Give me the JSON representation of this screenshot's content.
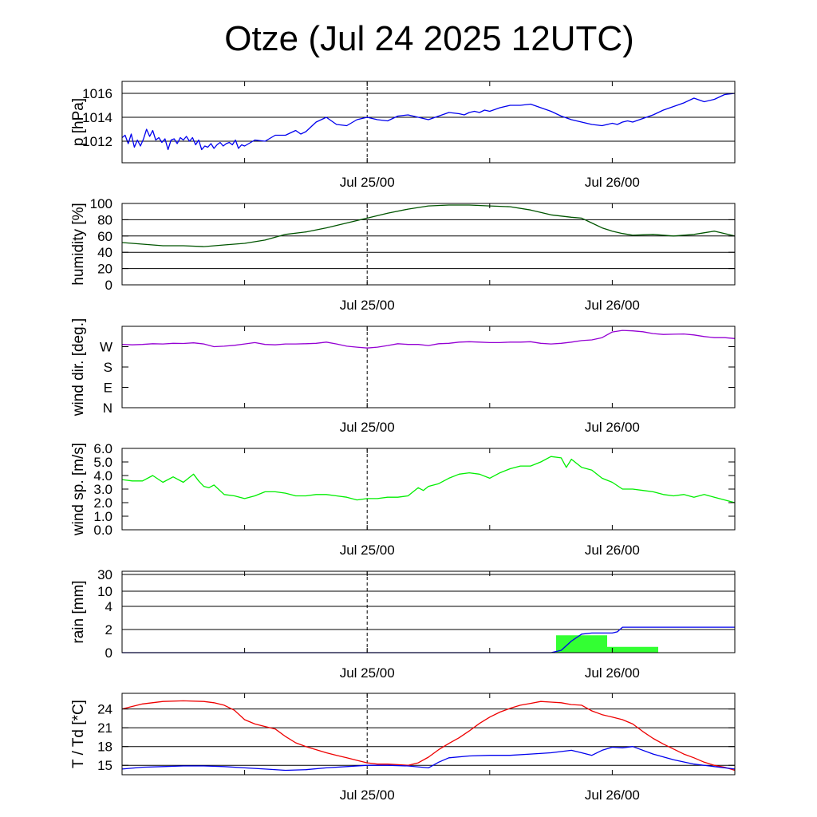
{
  "title": "Otze (Jul 24 2025 12UTC)",
  "x_axis": {
    "range_hours": [
      -24,
      36
    ],
    "tick_labels": [
      {
        "x": 0,
        "label": "Jul 25/00"
      },
      {
        "x": 24,
        "label": "Jul 26/00"
      }
    ],
    "minor_ticks": [
      -12,
      0,
      12,
      24
    ]
  },
  "colors": {
    "pressure": "#0000ee",
    "humidity": "#005500",
    "wind_dir": "#9400d3",
    "wind_speed": "#00ee00",
    "rain_cum": "#0000ee",
    "rain_bar": "#33ff33",
    "temperature": "#ee0000",
    "dewpoint": "#0000ee"
  },
  "chart_data": [
    {
      "type": "line",
      "ylabel": "p [hPa]",
      "ylim": [
        1010.2,
        1017.0
      ],
      "gridlines": [
        1012,
        1014,
        1016
      ],
      "yticks": [
        {
          "v": 1012,
          "label": "1012"
        },
        {
          "v": 1014,
          "label": "1014"
        },
        {
          "v": 1016,
          "label": "1016"
        }
      ],
      "series": [
        {
          "color": "#0000ee",
          "x": [
            0,
            0.3,
            0.6,
            0.9,
            1.2,
            1.5,
            1.8,
            2.1,
            2.4,
            2.7,
            3.0,
            3.3,
            3.6,
            3.9,
            4.2,
            4.5,
            4.8,
            5.1,
            5.4,
            5.7,
            6.0,
            6.3,
            6.6,
            6.9,
            7.2,
            7.5,
            7.8,
            8.1,
            8.4,
            8.7,
            9.0,
            9.3,
            9.6,
            9.9,
            10.2,
            10.5,
            10.8,
            11.1,
            11.4,
            11.7,
            12,
            13,
            14,
            15,
            16,
            17,
            17.5,
            18,
            18.5,
            19,
            20,
            21,
            22,
            23,
            24,
            25,
            26,
            27,
            28,
            29,
            30,
            31,
            32,
            33,
            33.5,
            34,
            34.5,
            35,
            35.5,
            36,
            37,
            38,
            39,
            40,
            41,
            42,
            43,
            44,
            45,
            46,
            47,
            48,
            48.5,
            49,
            49.5,
            50,
            51,
            52,
            53,
            54,
            55,
            56,
            57,
            58,
            59,
            60
          ],
          "y": [
            1012.3,
            1012.5,
            1011.8,
            1012.6,
            1011.5,
            1012.1,
            1011.6,
            1012.2,
            1013.0,
            1012.4,
            1012.9,
            1012.1,
            1012.3,
            1011.9,
            1012.2,
            1011.3,
            1012.1,
            1012.2,
            1011.8,
            1012.3,
            1012.1,
            1012.4,
            1012.0,
            1012.3,
            1011.7,
            1012.1,
            1011.3,
            1011.6,
            1011.5,
            1011.8,
            1011.4,
            1011.7,
            1011.9,
            1011.6,
            1011.8,
            1011.9,
            1011.7,
            1012.1,
            1011.4,
            1011.7,
            1011.6,
            1012.1,
            1012.0,
            1012.5,
            1012.5,
            1012.9,
            1012.6,
            1012.8,
            1013.2,
            1013.6,
            1014.0,
            1013.4,
            1013.3,
            1013.8,
            1014.0,
            1013.8,
            1013.7,
            1014.1,
            1014.2,
            1014.0,
            1013.8,
            1014.1,
            1014.4,
            1014.3,
            1014.2,
            1014.4,
            1014.5,
            1014.4,
            1014.6,
            1014.5,
            1014.8,
            1015.0,
            1015.0,
            1015.1,
            1014.8,
            1014.5,
            1014.1,
            1013.8,
            1013.6,
            1013.4,
            1013.3,
            1013.5,
            1013.4,
            1013.6,
            1013.7,
            1013.6,
            1013.9,
            1014.2,
            1014.6,
            1014.9,
            1015.2,
            1015.6,
            1015.3,
            1015.5,
            1015.9,
            1016.0
          ]
        }
      ]
    },
    {
      "type": "line",
      "ylabel": "humidity [%]",
      "ylim": [
        0,
        100
      ],
      "gridlines": [
        20,
        40,
        60,
        80
      ],
      "yticks": [
        {
          "v": 0,
          "label": "0"
        },
        {
          "v": 20,
          "label": "20"
        },
        {
          "v": 40,
          "label": "40"
        },
        {
          "v": 60,
          "label": "60"
        },
        {
          "v": 80,
          "label": "80"
        },
        {
          "v": 100,
          "label": "100"
        }
      ],
      "series": [
        {
          "color": "#005500",
          "x": [
            0,
            2,
            4,
            6,
            8,
            10,
            12,
            14,
            16,
            18,
            20,
            22,
            24,
            26,
            28,
            30,
            32,
            34,
            36,
            38,
            40,
            42,
            44,
            45,
            46,
            47,
            48,
            49,
            50,
            52,
            54,
            56,
            58,
            60
          ],
          "y": [
            52,
            50,
            48,
            48,
            47,
            49,
            51,
            55,
            62,
            65,
            70,
            76,
            82,
            88,
            93,
            97,
            98,
            98,
            97,
            96,
            92,
            86,
            83,
            82,
            76,
            70,
            66,
            63,
            61,
            62,
            60,
            62,
            66,
            60
          ]
        }
      ]
    },
    {
      "type": "line",
      "ylabel": "wind dir. [deg.]",
      "ylim": [
        0,
        360
      ],
      "gridlines": [],
      "yticks": [
        {
          "v": 0,
          "label": "N"
        },
        {
          "v": 90,
          "label": "E"
        },
        {
          "v": 180,
          "label": "S"
        },
        {
          "v": 270,
          "label": "W"
        }
      ],
      "series": [
        {
          "color": "#9400d3",
          "x": [
            0,
            1,
            2,
            3,
            4,
            5,
            6,
            7,
            8,
            9,
            10,
            11,
            12,
            13,
            14,
            15,
            16,
            17,
            18,
            19,
            20,
            21,
            22,
            23,
            24,
            25,
            26,
            27,
            28,
            29,
            30,
            31,
            32,
            33,
            34,
            35,
            36,
            37,
            38,
            39,
            40,
            41,
            42,
            43,
            44,
            45,
            46,
            47,
            48,
            49,
            50,
            51,
            52,
            53,
            54,
            55,
            56,
            57,
            58,
            59,
            60
          ],
          "y": [
            280,
            278,
            280,
            283,
            282,
            285,
            284,
            287,
            282,
            270,
            272,
            276,
            282,
            288,
            280,
            278,
            282,
            282,
            283,
            285,
            290,
            282,
            272,
            268,
            264,
            268,
            275,
            283,
            280,
            280,
            275,
            283,
            285,
            290,
            292,
            290,
            288,
            288,
            290,
            290,
            292,
            285,
            282,
            285,
            290,
            297,
            300,
            310,
            335,
            342,
            340,
            336,
            328,
            324,
            325,
            326,
            322,
            315,
            310,
            310,
            306
          ]
        }
      ]
    },
    {
      "type": "line",
      "ylabel": "wind sp. [m/s]",
      "ylim": [
        0,
        6
      ],
      "gridlines": [],
      "yticks": [
        {
          "v": 0,
          "label": "0.0"
        },
        {
          "v": 1,
          "label": "1.0"
        },
        {
          "v": 2,
          "label": "2.0"
        },
        {
          "v": 3,
          "label": "3.0"
        },
        {
          "v": 4,
          "label": "4.0"
        },
        {
          "v": 5,
          "label": "5.0"
        },
        {
          "v": 6,
          "label": "6.0"
        }
      ],
      "series": [
        {
          "color": "#00ee00",
          "x": [
            0,
            1,
            2,
            3,
            4,
            5,
            6,
            7,
            7.5,
            8,
            8.5,
            9,
            10,
            11,
            12,
            13,
            14,
            15,
            16,
            17,
            18,
            19,
            20,
            21,
            22,
            23,
            24,
            25,
            26,
            27,
            28,
            29,
            29.5,
            30,
            31,
            32,
            33,
            34,
            35,
            36,
            37,
            38,
            39,
            40,
            41,
            42,
            43,
            43.5,
            44,
            45,
            46,
            47,
            48,
            49,
            50,
            51,
            52,
            53,
            54,
            55,
            56,
            57,
            58,
            59,
            60
          ],
          "y": [
            3.7,
            3.6,
            3.6,
            4.0,
            3.5,
            3.9,
            3.5,
            4.1,
            3.6,
            3.2,
            3.1,
            3.3,
            2.6,
            2.5,
            2.3,
            2.5,
            2.8,
            2.8,
            2.7,
            2.5,
            2.5,
            2.6,
            2.6,
            2.5,
            2.4,
            2.2,
            2.3,
            2.3,
            2.4,
            2.4,
            2.5,
            3.1,
            2.9,
            3.2,
            3.4,
            3.8,
            4.1,
            4.2,
            4.1,
            3.8,
            4.2,
            4.5,
            4.7,
            4.7,
            5.0,
            5.4,
            5.3,
            4.6,
            5.2,
            4.6,
            4.4,
            3.8,
            3.5,
            3.0,
            3.0,
            2.9,
            2.8,
            2.6,
            2.5,
            2.6,
            2.4,
            2.6,
            2.4,
            2.2,
            2.0
          ]
        }
      ]
    },
    {
      "type": "bar",
      "ylabel": "rain [mm]",
      "scale": "mapped",
      "ylim": [
        0,
        30
      ],
      "gridlines": [
        2,
        4,
        10,
        30
      ],
      "yticks": [
        {
          "v": 0,
          "label": "0"
        },
        {
          "v": 2,
          "label": "2"
        },
        {
          "v": 4,
          "label": "4"
        },
        {
          "v": 10,
          "label": "10"
        },
        {
          "v": 30,
          "label": "30"
        }
      ],
      "bars": [
        {
          "x0": 42.5,
          "x1": 47.5,
          "value": 1.5
        },
        {
          "x0": 47.5,
          "x1": 52.5,
          "value": 0.5
        }
      ],
      "series": [
        {
          "color": "#0000ee",
          "x": [
            0,
            40,
            42,
            43,
            44,
            45,
            46,
            47,
            48,
            48.5,
            49,
            50,
            55,
            60
          ],
          "y": [
            0,
            0,
            0,
            0.2,
            1.0,
            1.6,
            1.7,
            1.7,
            1.7,
            1.8,
            2.2,
            2.2,
            2.2,
            2.2
          ]
        }
      ]
    },
    {
      "type": "line",
      "ylabel": "T / Td [*C]",
      "ylim": [
        13.5,
        26.5
      ],
      "gridlines": [
        15,
        18,
        21,
        24
      ],
      "yticks": [
        {
          "v": 15,
          "label": "15"
        },
        {
          "v": 18,
          "label": "18"
        },
        {
          "v": 21,
          "label": "21"
        },
        {
          "v": 24,
          "label": "24"
        }
      ],
      "series": [
        {
          "name": "T",
          "color": "#ee0000",
          "x": [
            0,
            2,
            4,
            6,
            8,
            9,
            10,
            11,
            12,
            13,
            14,
            15,
            16,
            17,
            18,
            19,
            20,
            21,
            22,
            23,
            24,
            25,
            26,
            27,
            28,
            29,
            30,
            31,
            32,
            33,
            34,
            35,
            36,
            37,
            38,
            39,
            40,
            41,
            42,
            43,
            44,
            45,
            46,
            47,
            48,
            49,
            50,
            51,
            52,
            53,
            54,
            55,
            56,
            57,
            58,
            59,
            60
          ],
          "y": [
            24.0,
            24.8,
            25.2,
            25.3,
            25.2,
            25.0,
            24.6,
            23.8,
            22.3,
            21.6,
            21.2,
            20.8,
            19.6,
            18.6,
            18.0,
            17.5,
            17.0,
            16.6,
            16.2,
            15.8,
            15.4,
            15.2,
            15.2,
            15.1,
            15.0,
            15.4,
            16.3,
            17.5,
            18.5,
            19.4,
            20.5,
            21.7,
            22.7,
            23.5,
            24.1,
            24.6,
            24.9,
            25.2,
            25.1,
            25.0,
            24.7,
            24.6,
            23.7,
            23.1,
            22.7,
            22.3,
            21.6,
            20.4,
            19.3,
            18.4,
            17.6,
            16.8,
            16.2,
            15.5,
            15.0,
            14.7,
            14.2
          ]
        },
        {
          "name": "Td",
          "color": "#0000ee",
          "x": [
            0,
            2,
            4,
            6,
            8,
            10,
            12,
            14,
            16,
            18,
            20,
            22,
            24,
            26,
            28,
            30,
            31,
            32,
            34,
            36,
            38,
            40,
            42,
            44,
            45,
            46,
            47,
            48,
            49,
            50,
            52,
            54,
            56,
            58,
            60
          ],
          "y": [
            14.4,
            14.7,
            14.8,
            14.9,
            14.9,
            14.8,
            14.6,
            14.4,
            14.2,
            14.3,
            14.6,
            14.8,
            15.0,
            15.0,
            14.9,
            14.6,
            15.5,
            16.2,
            16.5,
            16.6,
            16.6,
            16.8,
            17.0,
            17.4,
            17.0,
            16.6,
            17.4,
            17.9,
            17.8,
            18.0,
            16.8,
            15.9,
            15.2,
            14.8,
            14.4
          ]
        }
      ]
    }
  ]
}
